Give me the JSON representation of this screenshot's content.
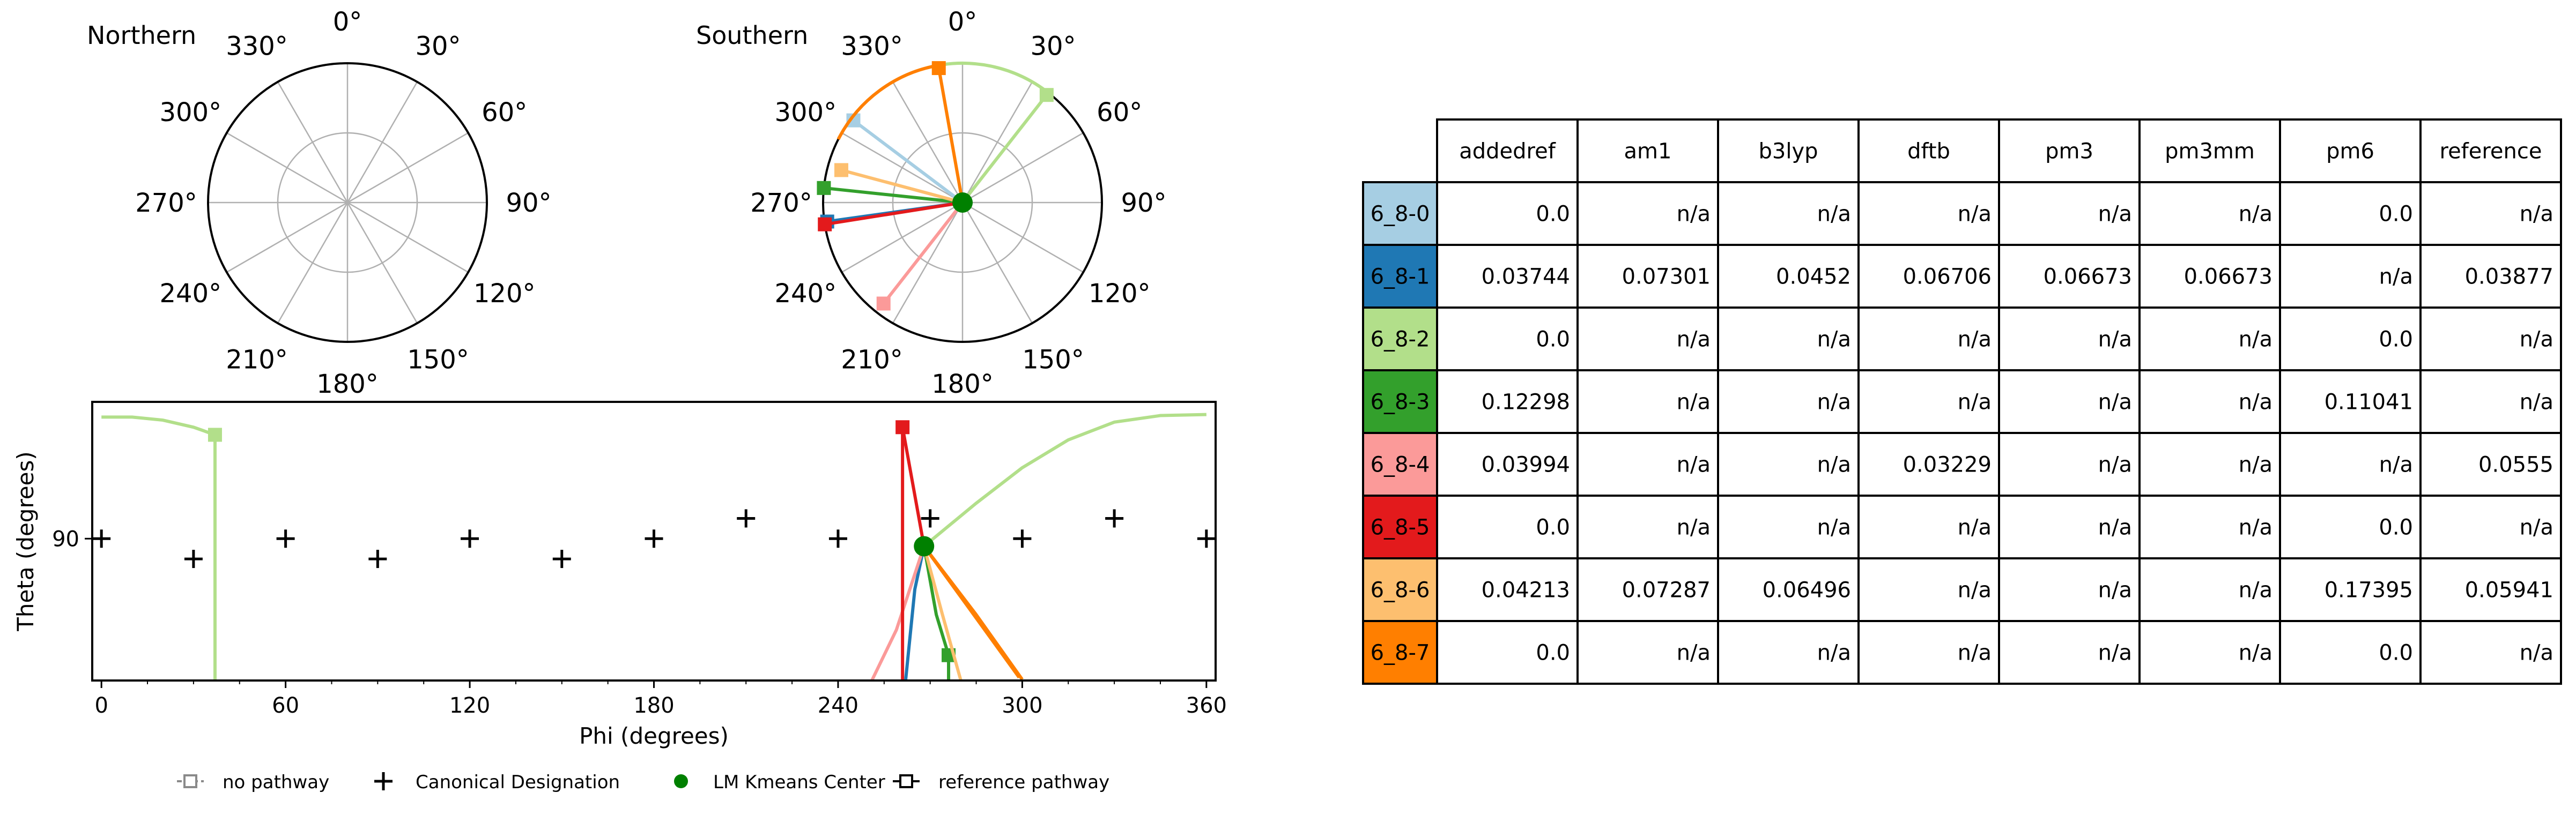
{
  "chart_data": [
    {
      "type": "polar",
      "title": "Northern",
      "angle_tick_labels": [
        "0°",
        "30°",
        "60°",
        "90°",
        "120°",
        "150°",
        "180°",
        "210°",
        "240°",
        "270°",
        "300°",
        "330°"
      ],
      "series": []
    },
    {
      "type": "polar",
      "title": "Southern",
      "angle_tick_labels": [
        "0°",
        "30°",
        "60°",
        "90°",
        "120°",
        "150°",
        "180°",
        "210°",
        "240°",
        "270°",
        "300°",
        "330°"
      ],
      "center_marker": {
        "color": "#008000"
      },
      "series": [
        {
          "name": "6_8-0",
          "color": "#a6cee3",
          "end": {
            "phi": 307,
            "r": 0.98
          }
        },
        {
          "name": "6_8-1",
          "color": "#1f78b4",
          "end": {
            "phi": 262,
            "r": 0.98
          }
        },
        {
          "name": "6_8-2",
          "color": "#b2df8a",
          "end": {
            "phi": 38,
            "r": 0.98
          },
          "arc_from_phi": 345
        },
        {
          "name": "6_8-3",
          "color": "#33a02c",
          "end": {
            "phi": 276,
            "r": 1.0
          }
        },
        {
          "name": "6_8-4",
          "color": "#fb9a99",
          "end": {
            "phi": 218,
            "r": 0.92
          }
        },
        {
          "name": "6_8-5",
          "color": "#e31a1c",
          "end": {
            "phi": 261,
            "r": 1.0
          }
        },
        {
          "name": "6_8-6",
          "color": "#fdbf6f",
          "end": {
            "phi": 285,
            "r": 0.9
          }
        },
        {
          "name": "6_8-7",
          "color": "#ff7f00",
          "end": {
            "phi": 350,
            "r": 0.98
          },
          "arc_from_phi": 297
        }
      ]
    },
    {
      "type": "line",
      "xlabel": "Phi (degrees)",
      "ylabel": "Theta (degrees)",
      "xlim": [
        -3,
        363
      ],
      "ylim": [
        62,
        117
      ],
      "xticks": [
        0,
        60,
        120,
        180,
        240,
        300,
        360
      ],
      "yticks": [
        90
      ],
      "canonical_designation": [
        {
          "x": 0,
          "y": 90
        },
        {
          "x": 30,
          "y": 86
        },
        {
          "x": 60,
          "y": 90
        },
        {
          "x": 90,
          "y": 86
        },
        {
          "x": 120,
          "y": 90
        },
        {
          "x": 150,
          "y": 86
        },
        {
          "x": 180,
          "y": 90
        },
        {
          "x": 210,
          "y": 94
        },
        {
          "x": 240,
          "y": 90
        },
        {
          "x": 270,
          "y": 94
        },
        {
          "x": 300,
          "y": 90
        },
        {
          "x": 330,
          "y": 94
        },
        {
          "x": 360,
          "y": 90
        }
      ],
      "lm_kmeans_center": {
        "x": 268,
        "y": 88.5,
        "color": "#008000"
      },
      "series": [
        {
          "name": "6_8-1",
          "color": "#1f78b4",
          "points": [
            [
              268,
              88.5
            ],
            [
              265,
              80
            ],
            [
              262,
              62
            ]
          ]
        },
        {
          "name": "6_8-2",
          "color": "#b2df8a",
          "points": [
            [
              0,
              114
            ],
            [
              10,
              114
            ],
            [
              20,
              113.4
            ],
            [
              30,
              112
            ],
            [
              37,
              110.5
            ],
            [
              37,
              62
            ]
          ],
          "marker": [
            37,
            110.5
          ]
        },
        {
          "name": "6_8-2",
          "color": "#b2df8a",
          "points": [
            [
              268,
              88.5
            ],
            [
              285,
              97
            ],
            [
              300,
              104
            ],
            [
              315,
              109.5
            ],
            [
              330,
              113
            ],
            [
              345,
              114.3
            ],
            [
              360,
              114.5
            ]
          ]
        },
        {
          "name": "6_8-3",
          "color": "#33a02c",
          "points": [
            [
              268,
              88.5
            ],
            [
              272,
              75
            ],
            [
              276,
              67
            ],
            [
              276,
              62
            ]
          ],
          "marker": [
            276,
            67
          ]
        },
        {
          "name": "6_8-4",
          "color": "#fb9a99",
          "points": [
            [
              268,
              88.5
            ],
            [
              259,
              72
            ],
            [
              251,
              62
            ]
          ]
        },
        {
          "name": "6_8-5",
          "color": "#e31a1c",
          "points": [
            [
              268,
              88.5
            ],
            [
              261,
              112
            ],
            [
              261,
              62
            ]
          ],
          "marker": [
            261,
            112
          ]
        },
        {
          "name": "6_8-6",
          "color": "#fdbf6f",
          "points": [
            [
              268,
              88.5
            ],
            [
              274,
              75
            ],
            [
              280,
              62
            ]
          ]
        },
        {
          "name": "6_8-7",
          "color": "#ff7f00",
          "points": [
            [
              268,
              88.5
            ],
            [
              285,
              75
            ],
            [
              300,
              62.2
            ]
          ]
        },
        {
          "name": "6_8-7",
          "color": "#ff7f00",
          "points": [
            [
              268,
              88.5
            ],
            [
              283,
              76
            ],
            [
              299,
              62.6
            ]
          ]
        }
      ]
    },
    {
      "type": "table",
      "columns": [
        "addedref",
        "am1",
        "b3lyp",
        "dftb",
        "pm3",
        "pm3mm",
        "pm6",
        "reference"
      ],
      "rows": [
        {
          "label": "6_8-0",
          "color": "#a6cee3",
          "values": [
            "0.0",
            "n/a",
            "n/a",
            "n/a",
            "n/a",
            "n/a",
            "0.0",
            "n/a"
          ]
        },
        {
          "label": "6_8-1",
          "color": "#1f78b4",
          "values": [
            "0.03744",
            "0.07301",
            "0.0452",
            "0.06706",
            "0.06673",
            "0.06673",
            "n/a",
            "0.03877"
          ]
        },
        {
          "label": "6_8-2",
          "color": "#b2df8a",
          "values": [
            "0.0",
            "n/a",
            "n/a",
            "n/a",
            "n/a",
            "n/a",
            "0.0",
            "n/a"
          ]
        },
        {
          "label": "6_8-3",
          "color": "#33a02c",
          "values": [
            "0.12298",
            "n/a",
            "n/a",
            "n/a",
            "n/a",
            "n/a",
            "0.11041",
            "n/a"
          ]
        },
        {
          "label": "6_8-4",
          "color": "#fb9a99",
          "values": [
            "0.03994",
            "n/a",
            "n/a",
            "0.03229",
            "n/a",
            "n/a",
            "n/a",
            "0.0555"
          ]
        },
        {
          "label": "6_8-5",
          "color": "#e31a1c",
          "values": [
            "0.0",
            "n/a",
            "n/a",
            "n/a",
            "n/a",
            "n/a",
            "0.0",
            "n/a"
          ]
        },
        {
          "label": "6_8-6",
          "color": "#fdbf6f",
          "values": [
            "0.04213",
            "0.07287",
            "0.06496",
            "n/a",
            "n/a",
            "n/a",
            "0.17395",
            "0.05941"
          ]
        },
        {
          "label": "6_8-7",
          "color": "#ff7f00",
          "values": [
            "0.0",
            "n/a",
            "n/a",
            "n/a",
            "n/a",
            "n/a",
            "0.0",
            "n/a"
          ]
        }
      ]
    }
  ],
  "legend": {
    "items": [
      {
        "label": "no pathway",
        "symbol": "dashed-open-square"
      },
      {
        "label": "Canonical Designation",
        "symbol": "plus"
      },
      {
        "label": "LM Kmeans Center",
        "symbol": "green-dot"
      },
      {
        "label": "reference pathway",
        "symbol": "solid-open-square"
      }
    ]
  }
}
